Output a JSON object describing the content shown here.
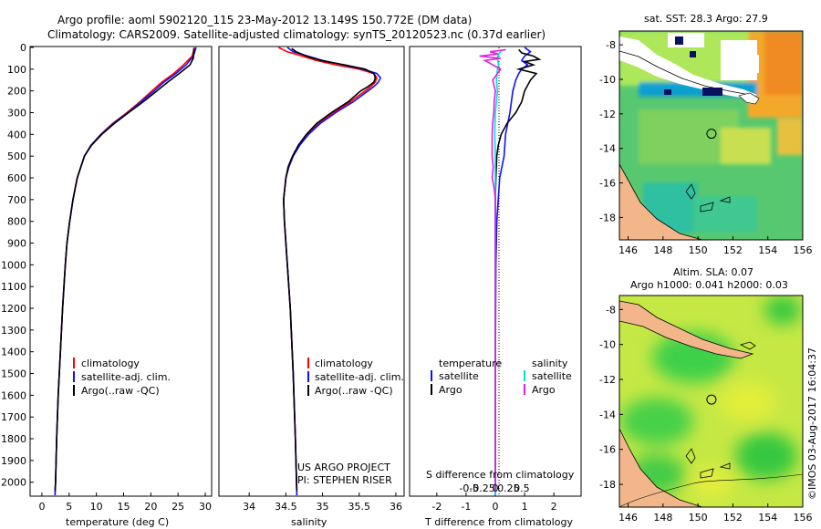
{
  "header": {
    "line1": "Argo profile: aoml 5902120_115 23-May-2012 13.149S 150.772E (DM data)",
    "line2": "Climatology: CARS2009. Satellite-adjusted climatology: synTS_20120523.nc (0.37d earlier)"
  },
  "colors": {
    "clim": "#ff0000",
    "sat": "#1010ff",
    "argo": "#000000",
    "sat_s": "#00e0e0",
    "argo_s": "#e020e0"
  },
  "chart_data": [
    {
      "type": "line",
      "id": "temperature",
      "xlabel": "temperature (deg C)",
      "xlim": [
        -2,
        31
      ],
      "ylim": [
        2060,
        0
      ],
      "xticks": [
        "0",
        "5",
        "10",
        "15",
        "20",
        "25",
        "30"
      ],
      "yticks": [
        "0",
        "100",
        "200",
        "300",
        "400",
        "500",
        "600",
        "700",
        "800",
        "900",
        "1000",
        "1100",
        "1200",
        "1300",
        "1400",
        "1500",
        "1600",
        "1700",
        "1800",
        "1900",
        "2000"
      ],
      "legend": [
        "climatology",
        "satellite-adj. clim.",
        "Argo(..raw -QC)"
      ],
      "series": [
        {
          "name": "climatology",
          "depth": [
            0,
            10,
            40,
            80,
            120,
            160,
            200,
            250,
            300,
            350,
            400,
            450,
            500,
            600,
            700,
            800,
            900,
            1000,
            1200,
            1400,
            1600,
            1800,
            2000,
            2060
          ],
          "values": [
            28.0,
            27.9,
            27.6,
            26.0,
            24.2,
            22.0,
            20.2,
            18.0,
            15.6,
            13.0,
            10.8,
            9.0,
            7.8,
            6.5,
            5.7,
            5.1,
            4.6,
            4.3,
            3.8,
            3.4,
            3.0,
            2.7,
            2.5,
            2.4
          ]
        },
        {
          "name": "satellite-adj. clim.",
          "depth": [
            0,
            10,
            40,
            80,
            120,
            160,
            200,
            250,
            300,
            350,
            400,
            450,
            500,
            600,
            700,
            800,
            900,
            1000,
            1200,
            1400,
            1600,
            1800,
            2000,
            2060
          ],
          "values": [
            28.3,
            28.2,
            27.8,
            26.5,
            24.6,
            22.4,
            20.6,
            18.2,
            15.8,
            13.1,
            10.9,
            9.0,
            7.8,
            6.5,
            5.7,
            5.1,
            4.6,
            4.3,
            3.8,
            3.4,
            3.0,
            2.7,
            2.5,
            2.4
          ]
        },
        {
          "name": "Argo",
          "depth": [
            5,
            20,
            50,
            80,
            120,
            160,
            200,
            250,
            300,
            350,
            400,
            450,
            500,
            600,
            700,
            800,
            900,
            1000,
            1200,
            1400,
            1600,
            1800,
            2000,
            2040
          ],
          "values": [
            27.9,
            27.9,
            27.8,
            27.2,
            25.2,
            23.1,
            21.1,
            18.6,
            15.9,
            13.3,
            11.0,
            9.1,
            7.8,
            6.5,
            5.7,
            5.1,
            4.6,
            4.3,
            3.8,
            3.4,
            3.0,
            2.7,
            2.5,
            2.4
          ]
        }
      ]
    },
    {
      "type": "line",
      "id": "salinity",
      "xlabel": "salinity",
      "xlim": [
        33.6,
        36.1
      ],
      "ylim": [
        2060,
        0
      ],
      "xticks": [
        "34",
        "34.5",
        "35",
        "35.5",
        "36"
      ],
      "legend": [
        "climatology",
        "satellite-adj. clim.",
        "Argo(..raw -QC)"
      ],
      "annotation": [
        "US ARGO PROJECT",
        "PI: STEPHEN RISER"
      ],
      "series": [
        {
          "name": "climatology",
          "depth": [
            0,
            20,
            40,
            60,
            80,
            100,
            120,
            140,
            160,
            180,
            200,
            250,
            300,
            350,
            400,
            450,
            500,
            550,
            600,
            700,
            800,
            1000,
            1200,
            1500,
            1800,
            2060
          ],
          "values": [
            34.4,
            34.52,
            34.72,
            34.92,
            35.18,
            35.5,
            35.7,
            35.74,
            35.72,
            35.66,
            35.58,
            35.38,
            35.15,
            34.95,
            34.8,
            34.68,
            34.6,
            34.54,
            34.5,
            34.47,
            34.48,
            34.52,
            34.56,
            34.6,
            34.63,
            34.65
          ]
        },
        {
          "name": "satellite-adj. clim.",
          "depth": [
            0,
            20,
            40,
            60,
            80,
            100,
            120,
            140,
            160,
            180,
            200,
            250,
            300,
            350,
            400,
            450,
            500,
            550,
            600,
            700,
            800,
            1000,
            1200,
            1500,
            1800,
            2060
          ],
          "values": [
            34.52,
            34.6,
            34.8,
            35.0,
            35.28,
            35.55,
            35.74,
            35.79,
            35.76,
            35.7,
            35.62,
            35.42,
            35.18,
            34.97,
            34.81,
            34.69,
            34.6,
            34.54,
            34.5,
            34.47,
            34.48,
            34.52,
            34.56,
            34.6,
            34.63,
            34.65
          ]
        },
        {
          "name": "Argo",
          "depth": [
            5,
            20,
            40,
            60,
            80,
            100,
            120,
            140,
            160,
            180,
            200,
            250,
            300,
            350,
            400,
            450,
            500,
            550,
            600,
            700,
            800,
            1000,
            1200,
            1500,
            1800,
            2040
          ],
          "values": [
            34.58,
            34.64,
            34.78,
            34.98,
            35.3,
            35.58,
            35.7,
            35.72,
            35.7,
            35.62,
            35.52,
            35.35,
            35.12,
            34.92,
            34.78,
            34.67,
            34.59,
            34.53,
            34.5,
            34.47,
            34.48,
            34.52,
            34.56,
            34.6,
            34.63,
            34.65
          ]
        }
      ]
    },
    {
      "type": "line",
      "id": "differences",
      "xlabel": "T difference from climatology",
      "xlabel2": "S difference from climatology",
      "xlim": [
        -2.9,
        2.9
      ],
      "ylim": [
        2060,
        0
      ],
      "xticks": [
        "-2",
        "-1",
        "0",
        "1",
        "2"
      ],
      "xticks_s": [
        "-0.5",
        "-0.25",
        "0",
        "0.25",
        "0.5"
      ],
      "legend_t_title": "temperature",
      "legend_s_title": "salinity",
      "legend_t": [
        "satellite",
        "Argo"
      ],
      "legend_s": [
        "satellite",
        "Argo"
      ],
      "series": [
        {
          "name": "T satellite",
          "depth": [
            0,
            20,
            40,
            60,
            80,
            100,
            120,
            150,
            200,
            250,
            300,
            400,
            500,
            600,
            700,
            800,
            1000,
            1500,
            2000,
            2060
          ],
          "values": [
            1.0,
            1.2,
            1.0,
            0.9,
            1.1,
            0.9,
            0.8,
            0.7,
            0.6,
            0.55,
            0.5,
            0.35,
            0.3,
            0.15,
            0.1,
            0.05,
            0.02,
            0.0,
            0.0,
            0.0
          ]
        },
        {
          "name": "T Argo",
          "depth": [
            10,
            25,
            40,
            55,
            65,
            80,
            100,
            120,
            150,
            200,
            250,
            300,
            350,
            400,
            450,
            500,
            600,
            700,
            800,
            1000,
            1500,
            2000,
            2040
          ],
          "values": [
            0.8,
            0.9,
            1.3,
            1.5,
            1.0,
            1.3,
            0.8,
            1.4,
            1.2,
            1.0,
            0.9,
            0.7,
            0.4,
            0.2,
            0.1,
            0.05,
            0.02,
            0.0,
            0.0,
            0.0,
            0.0,
            0.0,
            0.0
          ]
        },
        {
          "name": "S satellite",
          "depth": [
            10,
            20,
            30,
            50,
            80,
            100,
            150,
            200,
            250,
            300,
            400,
            500,
            600,
            700,
            800,
            1000,
            1500,
            2000,
            2060
          ],
          "values": [
            0.14,
            0.1,
            0.06,
            0.04,
            0.06,
            0.04,
            0.02,
            0.04,
            0.02,
            0.0,
            -0.01,
            0.0,
            0.0,
            0.0,
            0.0,
            0.0,
            0.0,
            0.0,
            0.0
          ]
        },
        {
          "name": "S Argo",
          "depth": [
            10,
            20,
            30,
            40,
            50,
            60,
            80,
            100,
            150,
            200,
            250,
            300,
            350,
            400,
            500,
            550,
            600,
            650,
            700,
            800,
            1000,
            1500,
            2000,
            2040
          ],
          "values": [
            0.2,
            -0.1,
            0.05,
            -0.3,
            0.1,
            -0.2,
            -0.05,
            0.1,
            -0.05,
            0.0,
            -0.02,
            -0.03,
            -0.05,
            -0.06,
            -0.06,
            -0.04,
            -0.06,
            -0.02,
            0.0,
            0.0,
            0.0,
            0.0,
            0.0,
            0.0
          ]
        }
      ]
    },
    {
      "type": "heatmap",
      "id": "sst-map",
      "title": "sat. SST: 28.3 Argo: 27.9",
      "xlim": [
        145.5,
        156
      ],
      "ylim": [
        -19.3,
        -7.2
      ],
      "xticks": [
        "146",
        "148",
        "150",
        "152",
        "154",
        "156"
      ],
      "yticks": [
        "-8",
        "-10",
        "-12",
        "-14",
        "-16",
        "-18"
      ],
      "marker": {
        "lon": 150.772,
        "lat": -13.149
      }
    },
    {
      "type": "heatmap",
      "id": "sla-map",
      "title": "Altim. SLA: 0.07",
      "subtitle": "Argo h1000: 0.041 h2000: 0.03",
      "xlim": [
        145.5,
        156
      ],
      "ylim": [
        -19.3,
        -7.2
      ],
      "xticks": [
        "146",
        "148",
        "150",
        "152",
        "154",
        "156"
      ],
      "yticks": [
        "-8",
        "-10",
        "-12",
        "-14",
        "-16",
        "-18"
      ],
      "marker": {
        "lon": 150.772,
        "lat": -13.149
      }
    }
  ],
  "footer": {
    "credit": "©IMOS 03-Aug-2017 16:04:37"
  }
}
